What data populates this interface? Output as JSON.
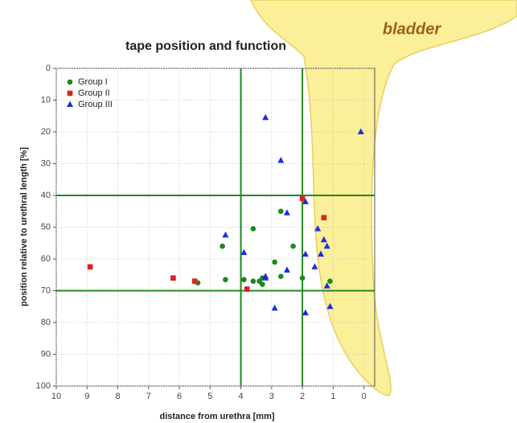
{
  "chart_data": {
    "type": "scatter",
    "title": "tape position and function",
    "annotation": "bladder",
    "x_label": "distance from urethra [mm]",
    "y_label": "position relative to urethral length [%]",
    "xlim": [
      10,
      -0.35
    ],
    "ylim": [
      0,
      100
    ],
    "y_inverted": true,
    "xticks": [
      10,
      9,
      8,
      7,
      6,
      5,
      4,
      3,
      2,
      1,
      0
    ],
    "yticks": [
      0,
      10,
      20,
      30,
      40,
      50,
      60,
      70,
      80,
      90,
      100
    ],
    "grid": true,
    "legend": "top-left",
    "reference_lines": {
      "color": "#1f8a1f",
      "x": [
        4,
        2
      ],
      "y": [
        40,
        70
      ]
    },
    "series": [
      {
        "name": "Group I",
        "color": "#1a8a1a",
        "marker": "circle",
        "x": [
          2.7,
          3.6,
          4.6,
          2.3,
          2.9,
          4.5,
          3.9,
          3.6,
          3.4,
          3.3,
          2.7,
          3.3,
          5.4,
          2.0,
          1.1
        ],
        "y": [
          45,
          50.5,
          56,
          56,
          61,
          66.5,
          66.5,
          67,
          67,
          68,
          65.5,
          66,
          67.5,
          66,
          67
        ]
      },
      {
        "name": "Group II",
        "color": "#e02020",
        "marker": "square",
        "x": [
          8.9,
          6.2,
          5.5,
          3.8,
          2.0,
          1.3
        ],
        "y": [
          62.5,
          66,
          67,
          69.5,
          41,
          47
        ]
      },
      {
        "name": "Group III",
        "color": "#1a2ee0",
        "marker": "triangle",
        "x": [
          3.2,
          2.7,
          0.1,
          1.9,
          2.5,
          4.5,
          1.5,
          1.3,
          1.2,
          1.4,
          1.9,
          3.9,
          2.5,
          1.6,
          3.2,
          3.2,
          1.2,
          2.9,
          1.1,
          1.9
        ],
        "y": [
          15.5,
          29,
          20,
          42,
          45.5,
          52.5,
          50.5,
          54,
          56,
          58.5,
          58.5,
          58,
          63.5,
          62.5,
          65.5,
          66,
          68.5,
          75.5,
          75,
          77
        ]
      }
    ]
  }
}
